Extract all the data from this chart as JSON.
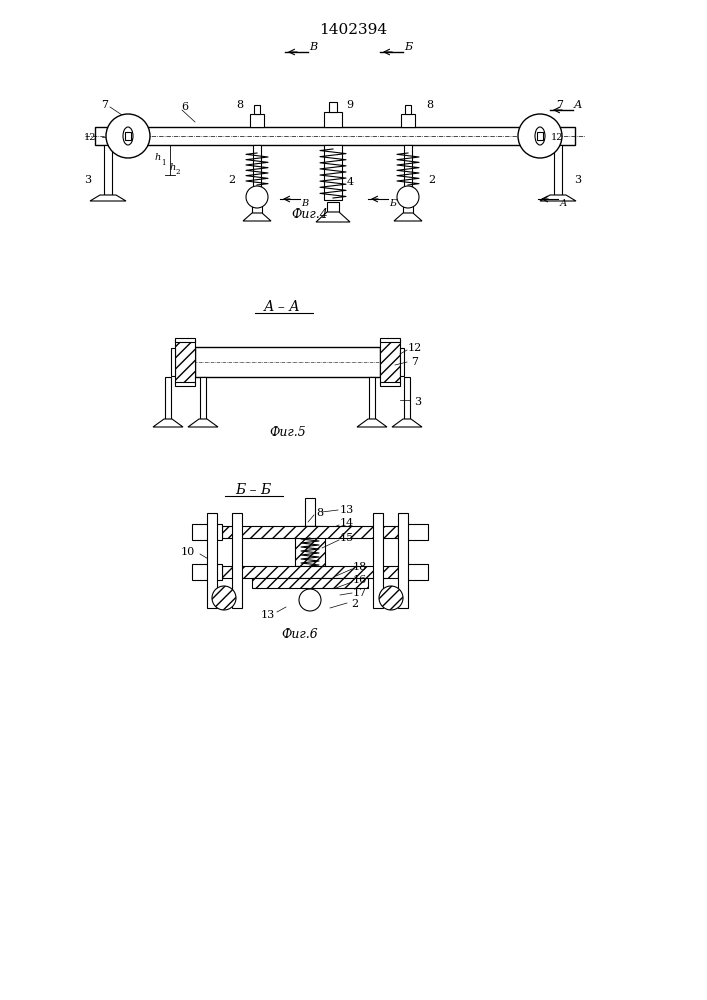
{
  "title": "1402394",
  "title_fontsize": 11,
  "bg_color": "#ffffff",
  "line_color": "#000000",
  "fig4_label": "Фиг.4",
  "fig5_label": "Фиг.5",
  "fig6_label": "Фиг.6",
  "sec_label_AA": "А – А",
  "sec_label_BB": "Б – Б",
  "label_fontsize": 9,
  "anno_fontsize": 8
}
